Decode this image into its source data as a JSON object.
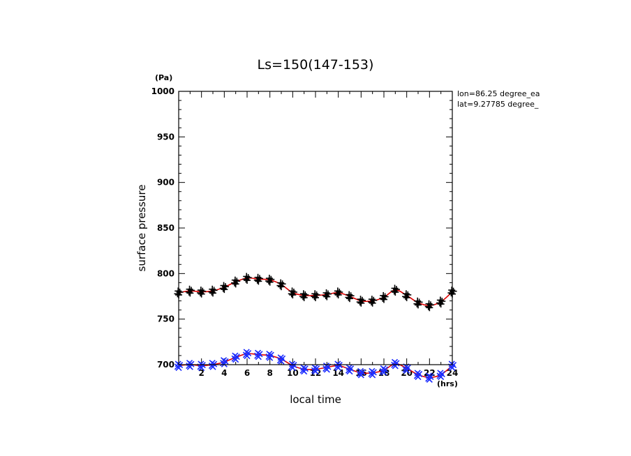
{
  "chart_data": {
    "type": "scatter",
    "title": "Ls=150(147-153)",
    "xlabel": "local time",
    "ylabel": "surface pressure",
    "x_unit": "(hrs)",
    "y_unit": "(Pa)",
    "xlim": [
      0,
      24
    ],
    "ylim": [
      700,
      1000
    ],
    "xticks": [
      2,
      4,
      6,
      8,
      10,
      12,
      14,
      16,
      18,
      20,
      22,
      24
    ],
    "yticks": [
      700,
      750,
      800,
      850,
      900,
      950,
      1000
    ],
    "info_lines": [
      "lon=86.25 degree_ea",
      "lat=9.27785 degree_"
    ],
    "grid": false,
    "legend": "none",
    "colors": {
      "series_black": "#000000",
      "series_blue": "#1a2bff",
      "fit": "#e00000",
      "axis": "#000000"
    },
    "series": [
      {
        "marker": "plus",
        "color": "#000000",
        "x": [
          0,
          1,
          2,
          3,
          4,
          5,
          6,
          7,
          8,
          9,
          10,
          11,
          12,
          13,
          14,
          15,
          16,
          17,
          18,
          19,
          20,
          21,
          22,
          23,
          24
        ],
        "y": [
          779,
          781,
          780,
          781,
          785,
          791,
          795,
          794,
          793,
          788,
          779,
          776,
          776,
          777,
          779,
          775,
          770,
          770,
          774,
          782,
          776,
          768,
          765,
          769,
          780
        ]
      },
      {
        "marker": "cross",
        "color": "#1a2bff",
        "x": [
          0,
          1,
          2,
          3,
          4,
          5,
          6,
          7,
          8,
          9,
          10,
          11,
          12,
          13,
          14,
          15,
          16,
          17,
          18,
          19,
          20,
          21,
          22,
          23,
          24
        ],
        "y": [
          699,
          700,
          699,
          700,
          703,
          708,
          712,
          711,
          710,
          706,
          699,
          695,
          695,
          697,
          699,
          695,
          691,
          691,
          694,
          701,
          696,
          689,
          686,
          689,
          699
        ]
      }
    ]
  }
}
